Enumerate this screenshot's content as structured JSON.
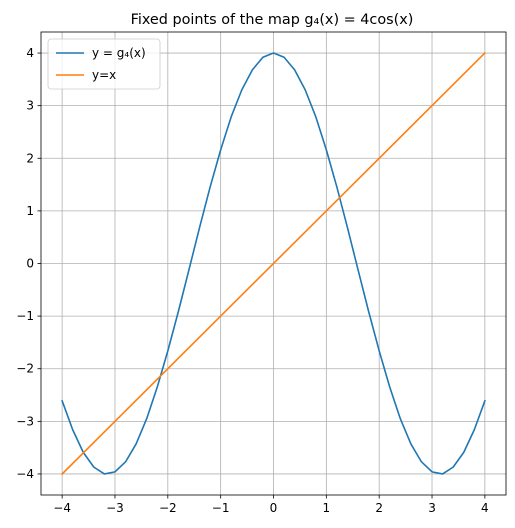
{
  "chart_data": {
    "type": "line",
    "title": "Fixed points of the map g₄(x) = 4cos(x)",
    "xlabel": "",
    "ylabel": "",
    "xlim": [
      -4.4,
      4.4
    ],
    "ylim": [
      -4.4,
      4.4
    ],
    "grid": true,
    "legend_position": "top-left",
    "x_ticks": [
      -4,
      -3,
      -2,
      -1,
      0,
      1,
      2,
      3,
      4
    ],
    "x_tick_labels": [
      "−4",
      "−3",
      "−2",
      "−1",
      "0",
      "1",
      "2",
      "3",
      "4"
    ],
    "y_ticks": [
      -4,
      -3,
      -2,
      -1,
      0,
      1,
      2,
      3,
      4
    ],
    "y_tick_labels": [
      "−4",
      "−3",
      "−2",
      "−1",
      "0",
      "1",
      "2",
      "3",
      "4"
    ],
    "series": [
      {
        "name": "y = g₄(x)",
        "color": "#1f77b4",
        "x": [
          -4.0,
          -3.8,
          -3.6,
          -3.4,
          -3.2,
          -3.0,
          -2.8,
          -2.6,
          -2.4,
          -2.2,
          -2.0,
          -1.8,
          -1.6,
          -1.4,
          -1.2,
          -1.0,
          -0.8,
          -0.6,
          -0.4,
          -0.2,
          0.0,
          0.2,
          0.4,
          0.6,
          0.8,
          1.0,
          1.2,
          1.4,
          1.6,
          1.8,
          2.0,
          2.2,
          2.4,
          2.6,
          2.8,
          3.0,
          3.2,
          3.4,
          3.6,
          3.8,
          4.0
        ],
        "y": [
          -2.61,
          -3.16,
          -3.59,
          -3.87,
          -4.0,
          -3.96,
          -3.77,
          -3.43,
          -2.95,
          -2.35,
          -1.66,
          -0.91,
          -0.12,
          0.68,
          1.45,
          2.16,
          2.79,
          3.3,
          3.68,
          3.92,
          4.0,
          3.92,
          3.68,
          3.3,
          2.79,
          2.16,
          1.45,
          0.68,
          -0.12,
          -0.91,
          -1.66,
          -2.35,
          -2.95,
          -3.43,
          -3.77,
          -3.96,
          -4.0,
          -3.87,
          -3.59,
          -3.16,
          -2.61
        ]
      },
      {
        "name": "y=x",
        "color": "#ff7f0e",
        "x": [
          -4.0,
          4.0
        ],
        "y": [
          -4.0,
          4.0
        ]
      }
    ]
  },
  "colors": {
    "grid": "#b0b0b0",
    "axes": "#000000",
    "background": "#ffffff"
  }
}
